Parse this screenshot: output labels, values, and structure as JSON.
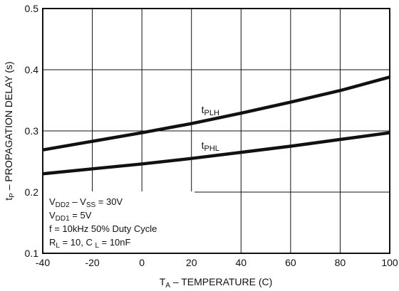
{
  "chart_data": {
    "type": "line",
    "title": "",
    "xlabel": {
      "main": "T",
      "sub": "A",
      "rest": " – TEMPERATURE (C)"
    },
    "ylabel": {
      "main": "t",
      "sub": "P",
      "rest": " – PROPAGATION DELAY (s)"
    },
    "xlim": [
      -40,
      100
    ],
    "ylim": [
      0.1,
      0.5
    ],
    "grid": true,
    "x_ticks": [
      "-40",
      "-20",
      "0",
      "20",
      "40",
      "60",
      "80",
      "100"
    ],
    "y_ticks": [
      "0.1",
      "0.2",
      "0.3",
      "0.4",
      "0.5"
    ],
    "series": [
      {
        "name": {
          "main": "t",
          "sub": "PLH"
        },
        "x": [
          -40,
          -20,
          0,
          20,
          40,
          60,
          80,
          100
        ],
        "y": [
          0.269,
          0.283,
          0.297,
          0.312,
          0.329,
          0.347,
          0.366,
          0.388
        ]
      },
      {
        "name": {
          "main": "t",
          "sub": "PHL"
        },
        "x": [
          -40,
          -20,
          0,
          20,
          40,
          60,
          80,
          100
        ],
        "y": [
          0.23,
          0.238,
          0.246,
          0.255,
          0.265,
          0.275,
          0.286,
          0.297
        ]
      }
    ],
    "annotation_lines": [
      {
        "parts": [
          {
            "t": "V"
          },
          {
            "t": "DD2",
            "s": true
          },
          {
            "t": " – V"
          },
          {
            "t": "SS",
            "s": true
          },
          {
            "t": " = 30V"
          }
        ]
      },
      {
        "parts": [
          {
            "t": "V"
          },
          {
            "t": "DD1",
            "s": true
          },
          {
            "t": " = 5V"
          }
        ]
      },
      {
        "parts": [
          {
            "t": "f = 10kHz 50% Duty Cycle"
          }
        ]
      },
      {
        "parts": [
          {
            "t": "R"
          },
          {
            "t": "L",
            "s": true
          },
          {
            "t": " = 10, C  "
          },
          {
            "t": "L",
            "s": true
          },
          {
            "t": " = 10nF"
          }
        ]
      }
    ]
  }
}
